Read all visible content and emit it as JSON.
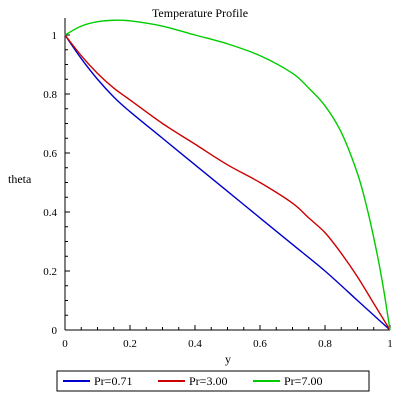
{
  "chart_data": {
    "type": "line",
    "title": "Temperature Profile",
    "xlabel": "y",
    "ylabel": "theta",
    "xlim": [
      0,
      1
    ],
    "ylim": [
      0,
      1
    ],
    "xticks": [
      0,
      0.2,
      0.4,
      0.6,
      0.8,
      1
    ],
    "yticks": [
      0,
      0.2,
      0.4,
      0.6,
      0.8,
      1
    ],
    "xtick_labels": [
      "0",
      "0.2",
      "0.4",
      "0.6",
      "0.8",
      "1"
    ],
    "ytick_labels": [
      "0",
      "0.2",
      "0.4",
      "0.6",
      "0.8",
      "1"
    ],
    "grid": false,
    "legend_position": "bottom",
    "series": [
      {
        "name": "Pr=0.71",
        "color": "#0000cc",
        "x": [
          0,
          0.05,
          0.1,
          0.15,
          0.2,
          0.3,
          0.4,
          0.5,
          0.6,
          0.7,
          0.8,
          0.9,
          0.95,
          1
        ],
        "y": [
          1,
          0.92,
          0.85,
          0.79,
          0.74,
          0.65,
          0.56,
          0.47,
          0.38,
          0.29,
          0.2,
          0.1,
          0.05,
          0
        ]
      },
      {
        "name": "Pr=3.00",
        "color": "#cc0000",
        "x": [
          0,
          0.05,
          0.1,
          0.15,
          0.2,
          0.3,
          0.4,
          0.5,
          0.6,
          0.7,
          0.75,
          0.8,
          0.85,
          0.9,
          0.95,
          1
        ],
        "y": [
          1,
          0.93,
          0.87,
          0.82,
          0.78,
          0.7,
          0.63,
          0.56,
          0.5,
          0.43,
          0.38,
          0.33,
          0.26,
          0.18,
          0.09,
          0
        ]
      },
      {
        "name": "Pr=7.00",
        "color": "#00cc00",
        "x": [
          0,
          0.05,
          0.1,
          0.15,
          0.2,
          0.3,
          0.4,
          0.5,
          0.6,
          0.7,
          0.75,
          0.8,
          0.85,
          0.9,
          0.93,
          0.96,
          0.98,
          1
        ],
        "y": [
          1,
          1.03,
          1.045,
          1.05,
          1.048,
          1.03,
          1.0,
          0.97,
          0.93,
          0.87,
          0.82,
          0.76,
          0.67,
          0.53,
          0.41,
          0.26,
          0.14,
          0
        ]
      }
    ]
  }
}
